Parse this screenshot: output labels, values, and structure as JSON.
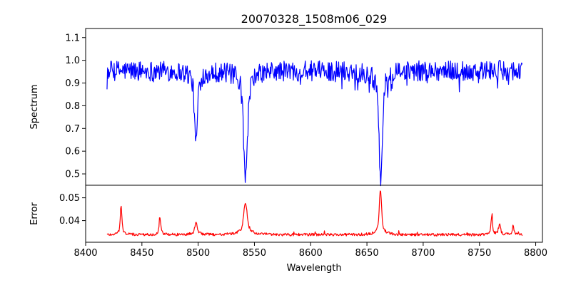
{
  "chart_data": {
    "type": "line",
    "title": "20070328_1508m06_029",
    "xlabel": "Wavelength",
    "xlim": [
      8400,
      8806
    ],
    "x_ticks": [
      8400,
      8450,
      8500,
      8550,
      8600,
      8650,
      8700,
      8750,
      8800
    ],
    "x_range_data": [
      8419,
      8788
    ],
    "panels": [
      {
        "id": "spectrum",
        "ylabel": "Spectrum",
        "ylim": [
          0.45,
          1.14
        ],
        "y_ticks": [
          0.5,
          0.6,
          0.7,
          0.8,
          0.9,
          1.0,
          1.1
        ],
        "y_tick_labels": [
          "0.5",
          "0.6",
          "0.7",
          "0.8",
          "0.9",
          "1.0",
          "1.1"
        ],
        "color": "#0000ff",
        "series": [
          {
            "baseline": 0.955,
            "noise": 0.045,
            "features": [
              {
                "center": 8498.0,
                "depth": 0.32,
                "width": 1.2
              },
              {
                "center": 8542.1,
                "depth": 0.48,
                "width": 1.6
              },
              {
                "center": 8662.2,
                "depth": 0.47,
                "width": 1.4
              }
            ]
          }
        ]
      },
      {
        "id": "error",
        "ylabel": "Error",
        "ylim": [
          0.0305,
          0.0555
        ],
        "y_ticks": [
          0.04,
          0.05
        ],
        "y_tick_labels": [
          "0.04",
          "0.05"
        ],
        "color": "#ff0000",
        "series": [
          {
            "baseline": 0.0338,
            "noise": 0.0006,
            "features": [
              {
                "center": 8431.5,
                "depth": 0.013,
                "width": 0.6
              },
              {
                "center": 8466.0,
                "depth": 0.008,
                "width": 0.6
              },
              {
                "center": 8498.0,
                "depth": 0.005,
                "width": 1.0
              },
              {
                "center": 8542.0,
                "depth": 0.014,
                "width": 1.4
              },
              {
                "center": 8662.0,
                "depth": 0.02,
                "width": 0.9
              },
              {
                "center": 8761.0,
                "depth": 0.008,
                "width": 0.6
              },
              {
                "center": 8768.0,
                "depth": 0.005,
                "width": 0.6
              },
              {
                "center": 8780.0,
                "depth": 0.004,
                "width": 0.6
              }
            ]
          }
        ]
      }
    ]
  }
}
